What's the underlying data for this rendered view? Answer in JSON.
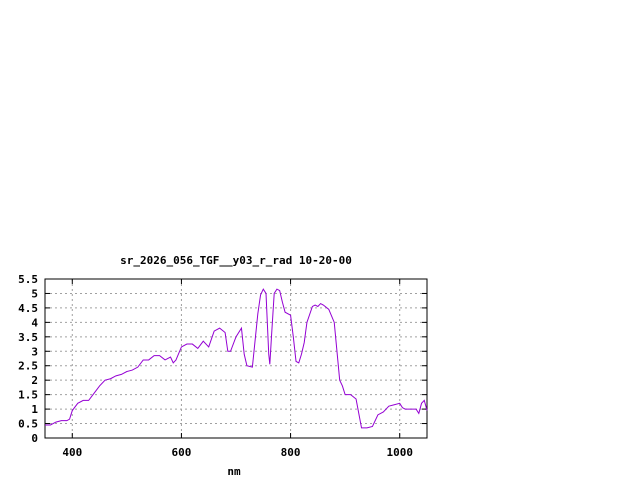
{
  "chart_data": {
    "type": "line",
    "title": "sr_2026_056_TGF__y03_r_rad 10-20-00",
    "xlabel": "nm",
    "ylabel": "",
    "xlim": [
      350,
      1050
    ],
    "ylim": [
      0,
      5.5
    ],
    "x_ticks": [
      400,
      600,
      800,
      1000
    ],
    "y_ticks": [
      0,
      0.5,
      1,
      1.5,
      2,
      2.5,
      3,
      3.5,
      4,
      4.5,
      5,
      5.5
    ],
    "x_tick_labels": [
      "400",
      "600",
      "800",
      "1000"
    ],
    "y_tick_labels": [
      "0",
      "0.5",
      "1",
      "1.5",
      "2",
      "2.5",
      "3",
      "3.5",
      "4",
      "4.5",
      "5",
      "5.5"
    ],
    "grid": true,
    "legend": "none",
    "series": [
      {
        "color": "#9400d3",
        "x": [
          350,
          360,
          370,
          380,
          390,
          395,
          400,
          410,
          420,
          430,
          440,
          450,
          460,
          470,
          480,
          490,
          500,
          510,
          520,
          530,
          540,
          550,
          560,
          570,
          580,
          585,
          590,
          600,
          610,
          620,
          630,
          640,
          650,
          660,
          670,
          680,
          685,
          690,
          700,
          710,
          715,
          720,
          730,
          740,
          745,
          750,
          755,
          760,
          762,
          765,
          770,
          775,
          780,
          785,
          790,
          800,
          805,
          810,
          815,
          820,
          825,
          830,
          840,
          845,
          850,
          855,
          860,
          870,
          880,
          890,
          895,
          900,
          910,
          920,
          930,
          940,
          950,
          960,
          970,
          980,
          990,
          1000,
          1005,
          1010,
          1020,
          1030,
          1035,
          1040,
          1045,
          1050
        ],
        "y": [
          0.45,
          0.45,
          0.55,
          0.6,
          0.6,
          0.65,
          0.95,
          1.2,
          1.3,
          1.3,
          1.55,
          1.8,
          2.0,
          2.05,
          2.15,
          2.2,
          2.3,
          2.35,
          2.45,
          2.7,
          2.7,
          2.85,
          2.85,
          2.7,
          2.8,
          2.6,
          2.7,
          3.15,
          3.25,
          3.25,
          3.1,
          3.35,
          3.15,
          3.7,
          3.8,
          3.65,
          3.0,
          3.0,
          3.5,
          3.8,
          2.9,
          2.5,
          2.45,
          4.3,
          4.95,
          5.15,
          5.0,
          2.9,
          2.55,
          3.5,
          5.0,
          5.15,
          5.1,
          4.7,
          4.35,
          4.25,
          3.5,
          2.65,
          2.6,
          2.9,
          3.3,
          4.0,
          4.55,
          4.6,
          4.55,
          4.65,
          4.6,
          4.45,
          4.0,
          2.0,
          1.8,
          1.5,
          1.5,
          1.35,
          0.35,
          0.35,
          0.4,
          0.8,
          0.9,
          1.1,
          1.15,
          1.2,
          1.05,
          1.0,
          1.0,
          1.0,
          0.85,
          1.2,
          1.3,
          0.95
        ]
      }
    ]
  }
}
